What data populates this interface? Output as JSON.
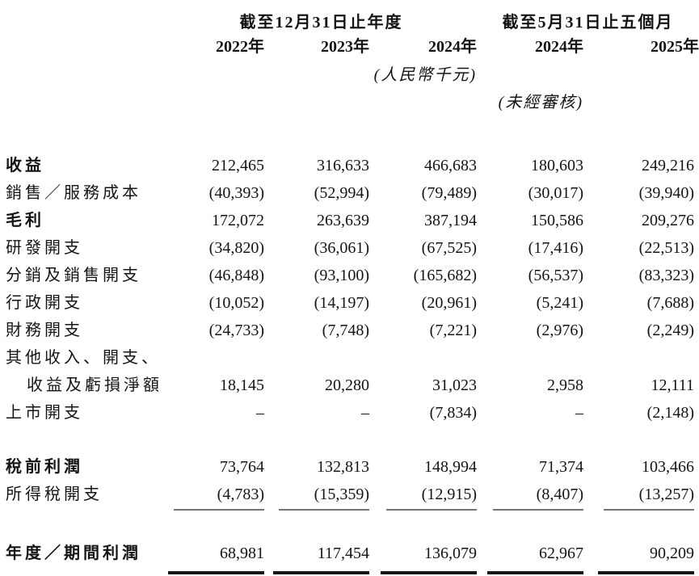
{
  "table": {
    "header": {
      "group1": "截至12月31日止年度",
      "group2": "截至5月31日止五個月",
      "years": [
        "2022年",
        "2023年",
        "2024年",
        "2024年",
        "2025年"
      ],
      "unit_note": "(人民幣千元)",
      "unaudited_note": "(未經審核)"
    },
    "rows": [
      {
        "label": "收益",
        "values": [
          "212,465",
          "316,633",
          "466,683",
          "180,603",
          "249,216"
        ]
      },
      {
        "label": "銷售／服務成本",
        "values": [
          "(40,393)",
          "(52,994)",
          "(79,489)",
          "(30,017)",
          "(39,940)"
        ]
      },
      {
        "label": "毛利",
        "values": [
          "172,072",
          "263,639",
          "387,194",
          "150,586",
          "209,276"
        ]
      },
      {
        "label": "研發開支",
        "values": [
          "(34,820)",
          "(36,061)",
          "(67,525)",
          "(17,416)",
          "(22,513)"
        ]
      },
      {
        "label": "分銷及銷售開支",
        "values": [
          "(46,848)",
          "(93,100)",
          "(165,682)",
          "(56,537)",
          "(83,323)"
        ]
      },
      {
        "label": "行政開支",
        "values": [
          "(10,052)",
          "(14,197)",
          "(20,961)",
          "(5,241)",
          "(7,688)"
        ]
      },
      {
        "label": "財務開支",
        "values": [
          "(24,733)",
          "(7,748)",
          "(7,221)",
          "(2,976)",
          "(2,249)"
        ]
      },
      {
        "label": "其他收入、開支、",
        "values": [
          "",
          "",
          "",
          "",
          ""
        ]
      },
      {
        "label": "收益及虧損淨額",
        "values": [
          "18,145",
          "20,280",
          "31,023",
          "2,958",
          "12,111"
        ]
      },
      {
        "label": "上市開支",
        "values": [
          "–",
          "–",
          "(7,834)",
          "–",
          "(2,148)"
        ]
      },
      {
        "label": "稅前利潤",
        "values": [
          "73,764",
          "132,813",
          "148,994",
          "71,374",
          "103,466"
        ]
      },
      {
        "label": "所得稅開支",
        "values": [
          "(4,783)",
          "(15,359)",
          "(12,915)",
          "(8,407)",
          "(13,257)"
        ]
      },
      {
        "label": "年度／期間利潤",
        "values": [
          "68,981",
          "117,454",
          "136,079",
          "62,967",
          "90,209"
        ]
      }
    ]
  }
}
